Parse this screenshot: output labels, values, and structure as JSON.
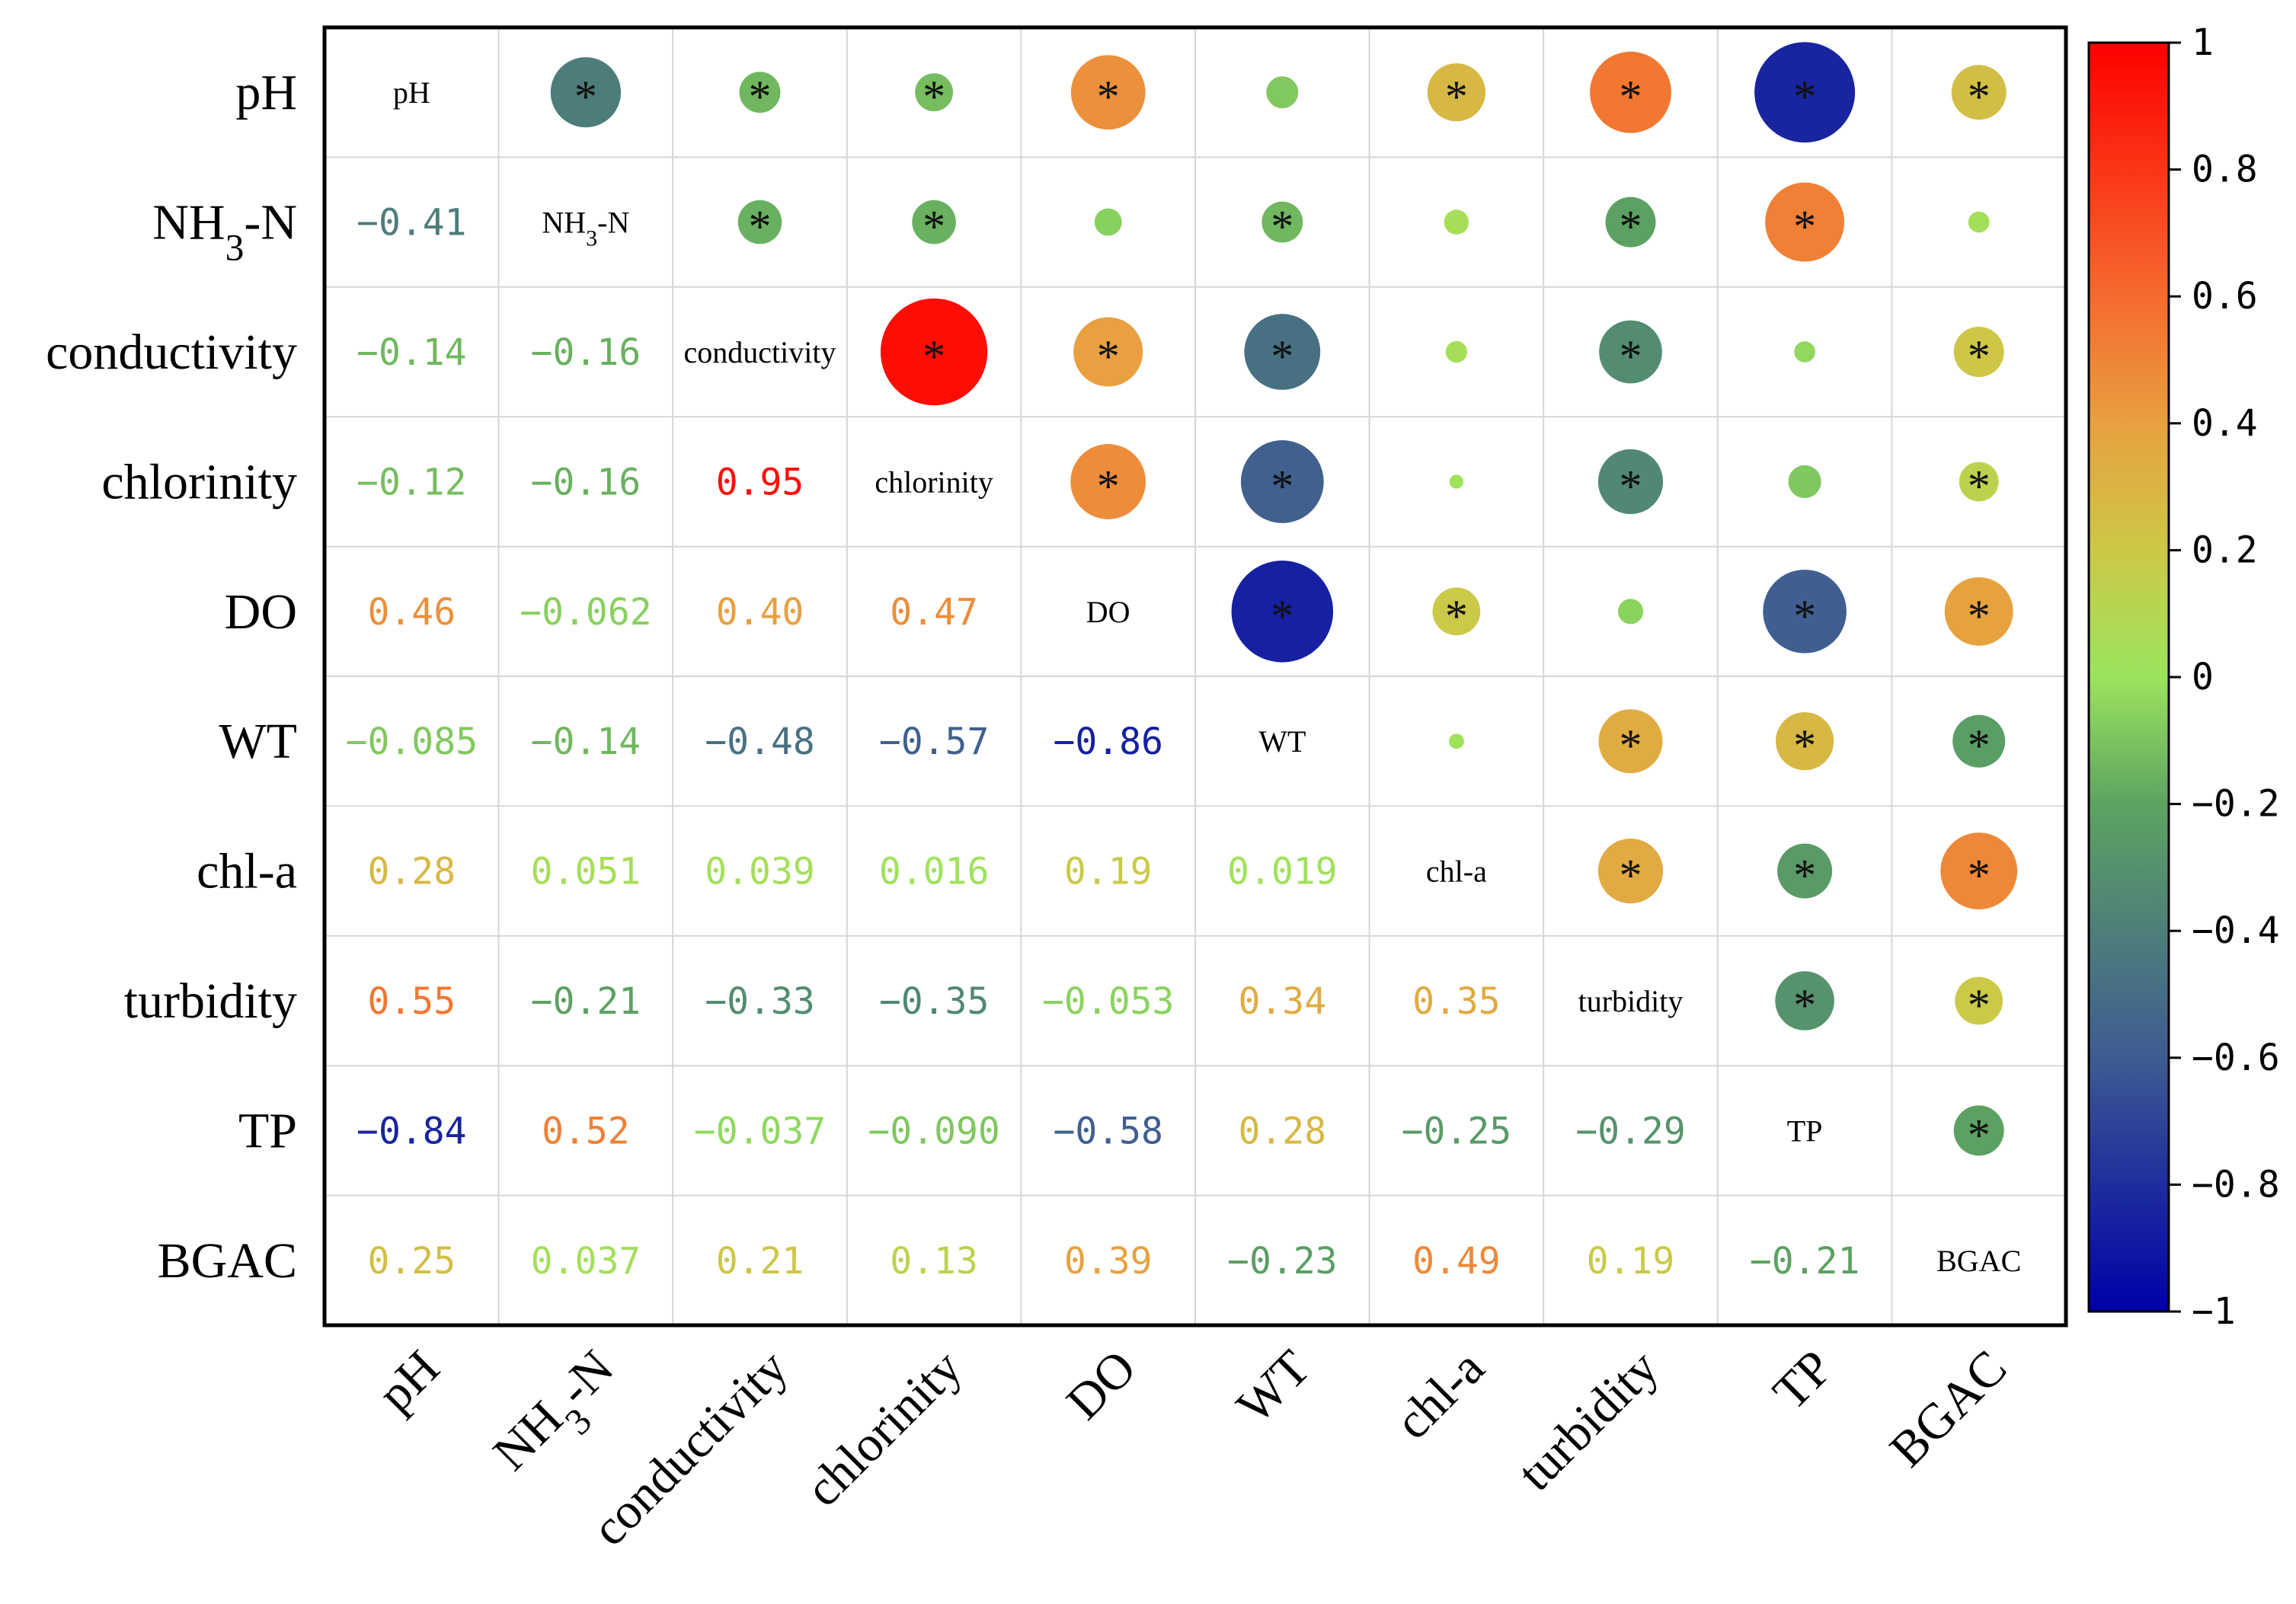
{
  "chart_data": {
    "type": "heatmap",
    "subtype": "correlation-matrix",
    "variables": [
      "pH",
      "NH3-N",
      "conductivity",
      "chlorinity",
      "DO",
      "WT",
      "chl-a",
      "turbidity",
      "TP",
      "BGAC"
    ],
    "matrix": [
      [
        1,
        -0.41,
        -0.14,
        -0.12,
        0.46,
        -0.085,
        0.28,
        0.55,
        -0.84,
        0.25
      ],
      [
        -0.41,
        1,
        -0.16,
        -0.16,
        -0.062,
        -0.14,
        0.051,
        -0.21,
        0.52,
        0.037
      ],
      [
        -0.14,
        -0.16,
        1,
        0.95,
        0.4,
        -0.48,
        0.039,
        -0.33,
        -0.037,
        0.21
      ],
      [
        -0.12,
        -0.16,
        0.95,
        1,
        0.47,
        -0.57,
        0.016,
        -0.35,
        -0.09,
        0.13
      ],
      [
        0.46,
        -0.062,
        0.4,
        0.47,
        1,
        -0.86,
        0.19,
        -0.053,
        -0.58,
        0.39
      ],
      [
        -0.085,
        -0.14,
        -0.48,
        -0.57,
        -0.86,
        1,
        0.019,
        0.34,
        0.28,
        -0.23
      ],
      [
        0.28,
        0.051,
        0.039,
        0.016,
        0.19,
        0.019,
        1,
        0.35,
        -0.25,
        0.49
      ],
      [
        0.55,
        -0.21,
        -0.33,
        -0.35,
        -0.053,
        0.34,
        0.35,
        1,
        -0.29,
        0.19
      ],
      [
        -0.84,
        0.52,
        -0.037,
        -0.09,
        -0.58,
        0.28,
        -0.25,
        -0.29,
        1,
        -0.21
      ],
      [
        0.25,
        0.037,
        0.21,
        0.13,
        0.39,
        -0.23,
        0.49,
        0.19,
        -0.21,
        1
      ]
    ],
    "lower_labels": [
      [
        "",
        "",
        "",
        "",
        "",
        "",
        "",
        "",
        "",
        ""
      ],
      [
        "−0.41",
        "",
        "",
        "",
        "",
        "",
        "",
        "",
        "",
        ""
      ],
      [
        "−0.14",
        "−0.16",
        "",
        "",
        "",
        "",
        "",
        "",
        "",
        ""
      ],
      [
        "−0.12",
        "−0.16",
        "0.95",
        "",
        "",
        "",
        "",
        "",
        "",
        ""
      ],
      [
        "0.46",
        "−0.062",
        "0.40",
        "0.47",
        "",
        "",
        "",
        "",
        "",
        ""
      ],
      [
        "−0.085",
        "−0.14",
        "−0.48",
        "−0.57",
        "−0.86",
        "",
        "",
        "",
        "",
        ""
      ],
      [
        "0.28",
        "0.051",
        "0.039",
        "0.016",
        "0.19",
        "0.019",
        "",
        "",
        "",
        ""
      ],
      [
        "0.55",
        "−0.21",
        "−0.33",
        "−0.35",
        "−0.053",
        "0.34",
        "0.35",
        "",
        "",
        ""
      ],
      [
        "−0.84",
        "0.52",
        "−0.037",
        "−0.090",
        "−0.58",
        "0.28",
        "−0.25",
        "−0.29",
        "",
        ""
      ],
      [
        "0.25",
        "0.037",
        "0.21",
        "0.13",
        "0.39",
        "−0.23",
        "0.49",
        "0.19",
        "−0.21",
        ""
      ]
    ],
    "significant": [
      [
        false,
        true,
        true,
        true,
        true,
        false,
        true,
        true,
        true,
        true
      ],
      [
        false,
        false,
        true,
        true,
        false,
        true,
        false,
        true,
        true,
        false
      ],
      [
        false,
        false,
        false,
        true,
        true,
        true,
        false,
        true,
        false,
        true
      ],
      [
        false,
        false,
        false,
        false,
        true,
        true,
        false,
        true,
        false,
        true
      ],
      [
        false,
        false,
        false,
        false,
        false,
        true,
        true,
        false,
        true,
        true
      ],
      [
        false,
        false,
        false,
        false,
        false,
        false,
        false,
        true,
        true,
        true
      ],
      [
        false,
        false,
        false,
        false,
        false,
        false,
        false,
        true,
        true,
        true
      ],
      [
        false,
        false,
        false,
        false,
        false,
        false,
        false,
        false,
        true,
        true
      ],
      [
        false,
        false,
        false,
        false,
        false,
        false,
        false,
        false,
        false,
        true
      ],
      [
        false,
        false,
        false,
        false,
        false,
        false,
        false,
        false,
        false,
        false
      ]
    ],
    "significance_marker": "*",
    "lower_triangle": "coefficient text",
    "upper_triangle": "circles sized and colored by coefficient",
    "diagonal": "variable names",
    "colorbar": {
      "range": [
        -1,
        1
      ],
      "ticks": [
        1,
        0.8,
        0.6,
        0.4,
        0.2,
        0,
        -0.2,
        -0.4,
        -0.6,
        -0.8,
        -1
      ],
      "tick_labels": [
        "1",
        "0.8",
        "0.6",
        "0.4",
        "0.2",
        "0",
        "−0.2",
        "−0.4",
        "−0.6",
        "−0.8",
        "−1"
      ],
      "stops": [
        {
          "value": -1,
          "color": "#0000a8"
        },
        {
          "value": -0.6,
          "color": "#3e5b92"
        },
        {
          "value": -0.2,
          "color": "#5da361"
        },
        {
          "value": 0,
          "color": "#9be45e"
        },
        {
          "value": 0.2,
          "color": "#ccc847"
        },
        {
          "value": 0.4,
          "color": "#e8a040"
        },
        {
          "value": 0.6,
          "color": "#f56a2e"
        },
        {
          "value": 1,
          "color": "#ff0000"
        }
      ]
    }
  }
}
